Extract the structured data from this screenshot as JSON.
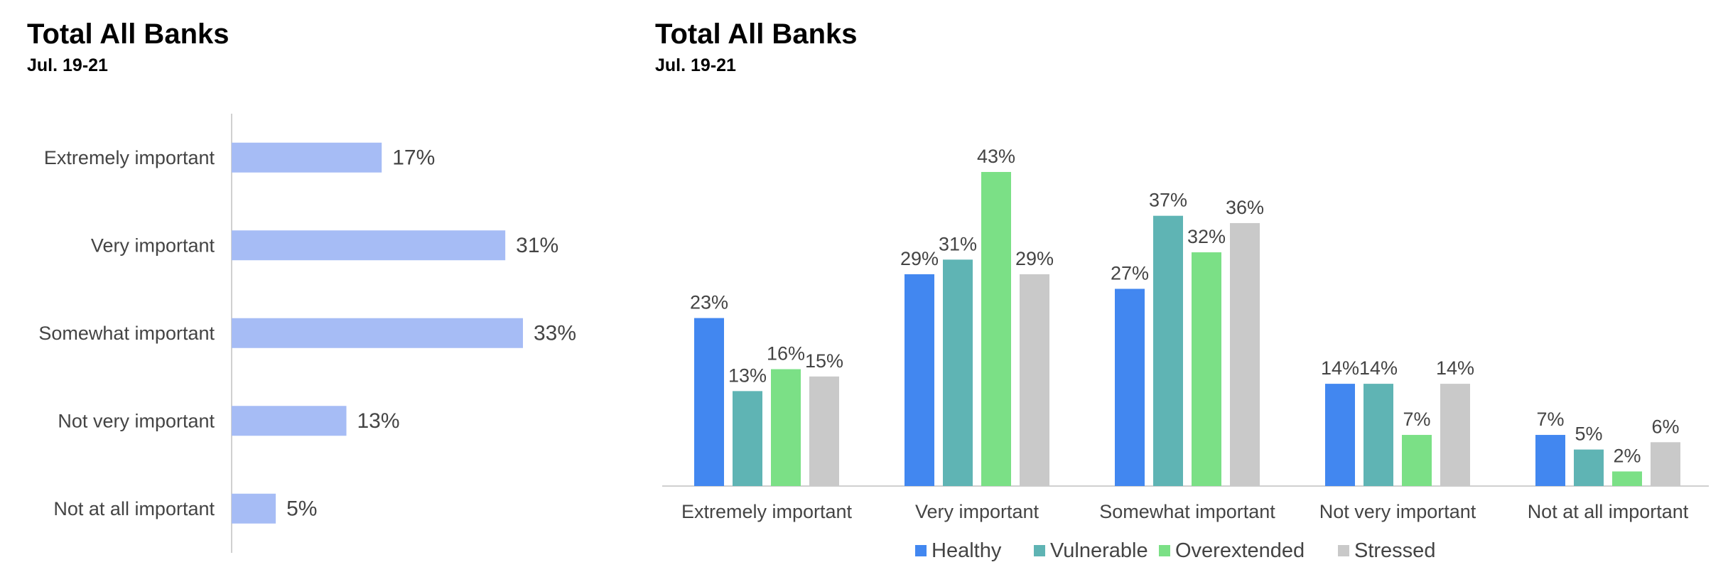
{
  "left_chart": {
    "title": "Total All Banks",
    "subtitle": "Jul. 19-21"
  },
  "right_chart": {
    "title": "Total All Banks",
    "subtitle": "Jul. 19-21"
  },
  "colors": {
    "single_bar": "#a6bcf5",
    "healthy": "#4287f0",
    "vulnerable": "#5fb4b4",
    "overextended": "#7be086",
    "stressed": "#c9c9c9",
    "axis": "#d0d0d0",
    "label_text": "#444444"
  },
  "chart_data": [
    {
      "type": "bar",
      "orientation": "horizontal",
      "title": "Total All Banks",
      "subtitle": "Jul. 19-21",
      "categories": [
        "Extremely important",
        "Very important",
        "Somewhat important",
        "Not very important",
        "Not at all important"
      ],
      "values": [
        17,
        31,
        33,
        13,
        5
      ],
      "value_labels": [
        "17%",
        "31%",
        "33%",
        "13%",
        "5%"
      ],
      "xlim": [
        0,
        35
      ],
      "grid": false,
      "legend": "none"
    },
    {
      "type": "bar",
      "orientation": "vertical",
      "title": "Total All Banks",
      "subtitle": "Jul. 19-21",
      "categories": [
        "Extremely important",
        "Very important",
        "Somewhat important",
        "Not very important",
        "Not at all important"
      ],
      "series": [
        {
          "name": "Healthy",
          "values": [
            23,
            29,
            27,
            14,
            7
          ],
          "labels": [
            "23%",
            "29%",
            "27%",
            "14%",
            "7%"
          ]
        },
        {
          "name": "Vulnerable",
          "values": [
            13,
            31,
            37,
            14,
            5
          ],
          "labels": [
            "13%",
            "31%",
            "37%",
            "14%",
            "5%"
          ]
        },
        {
          "name": "Overextended",
          "values": [
            16,
            43,
            32,
            7,
            2
          ],
          "labels": [
            "16%",
            "43%",
            "32%",
            "7%",
            "2%"
          ]
        },
        {
          "name": "Stressed",
          "values": [
            15,
            29,
            36,
            14,
            6
          ],
          "labels": [
            "15%",
            "29%",
            "36%",
            "14%",
            "6%"
          ]
        }
      ],
      "ylim": [
        0,
        45
      ],
      "grid": false,
      "legend": "bottom"
    }
  ]
}
